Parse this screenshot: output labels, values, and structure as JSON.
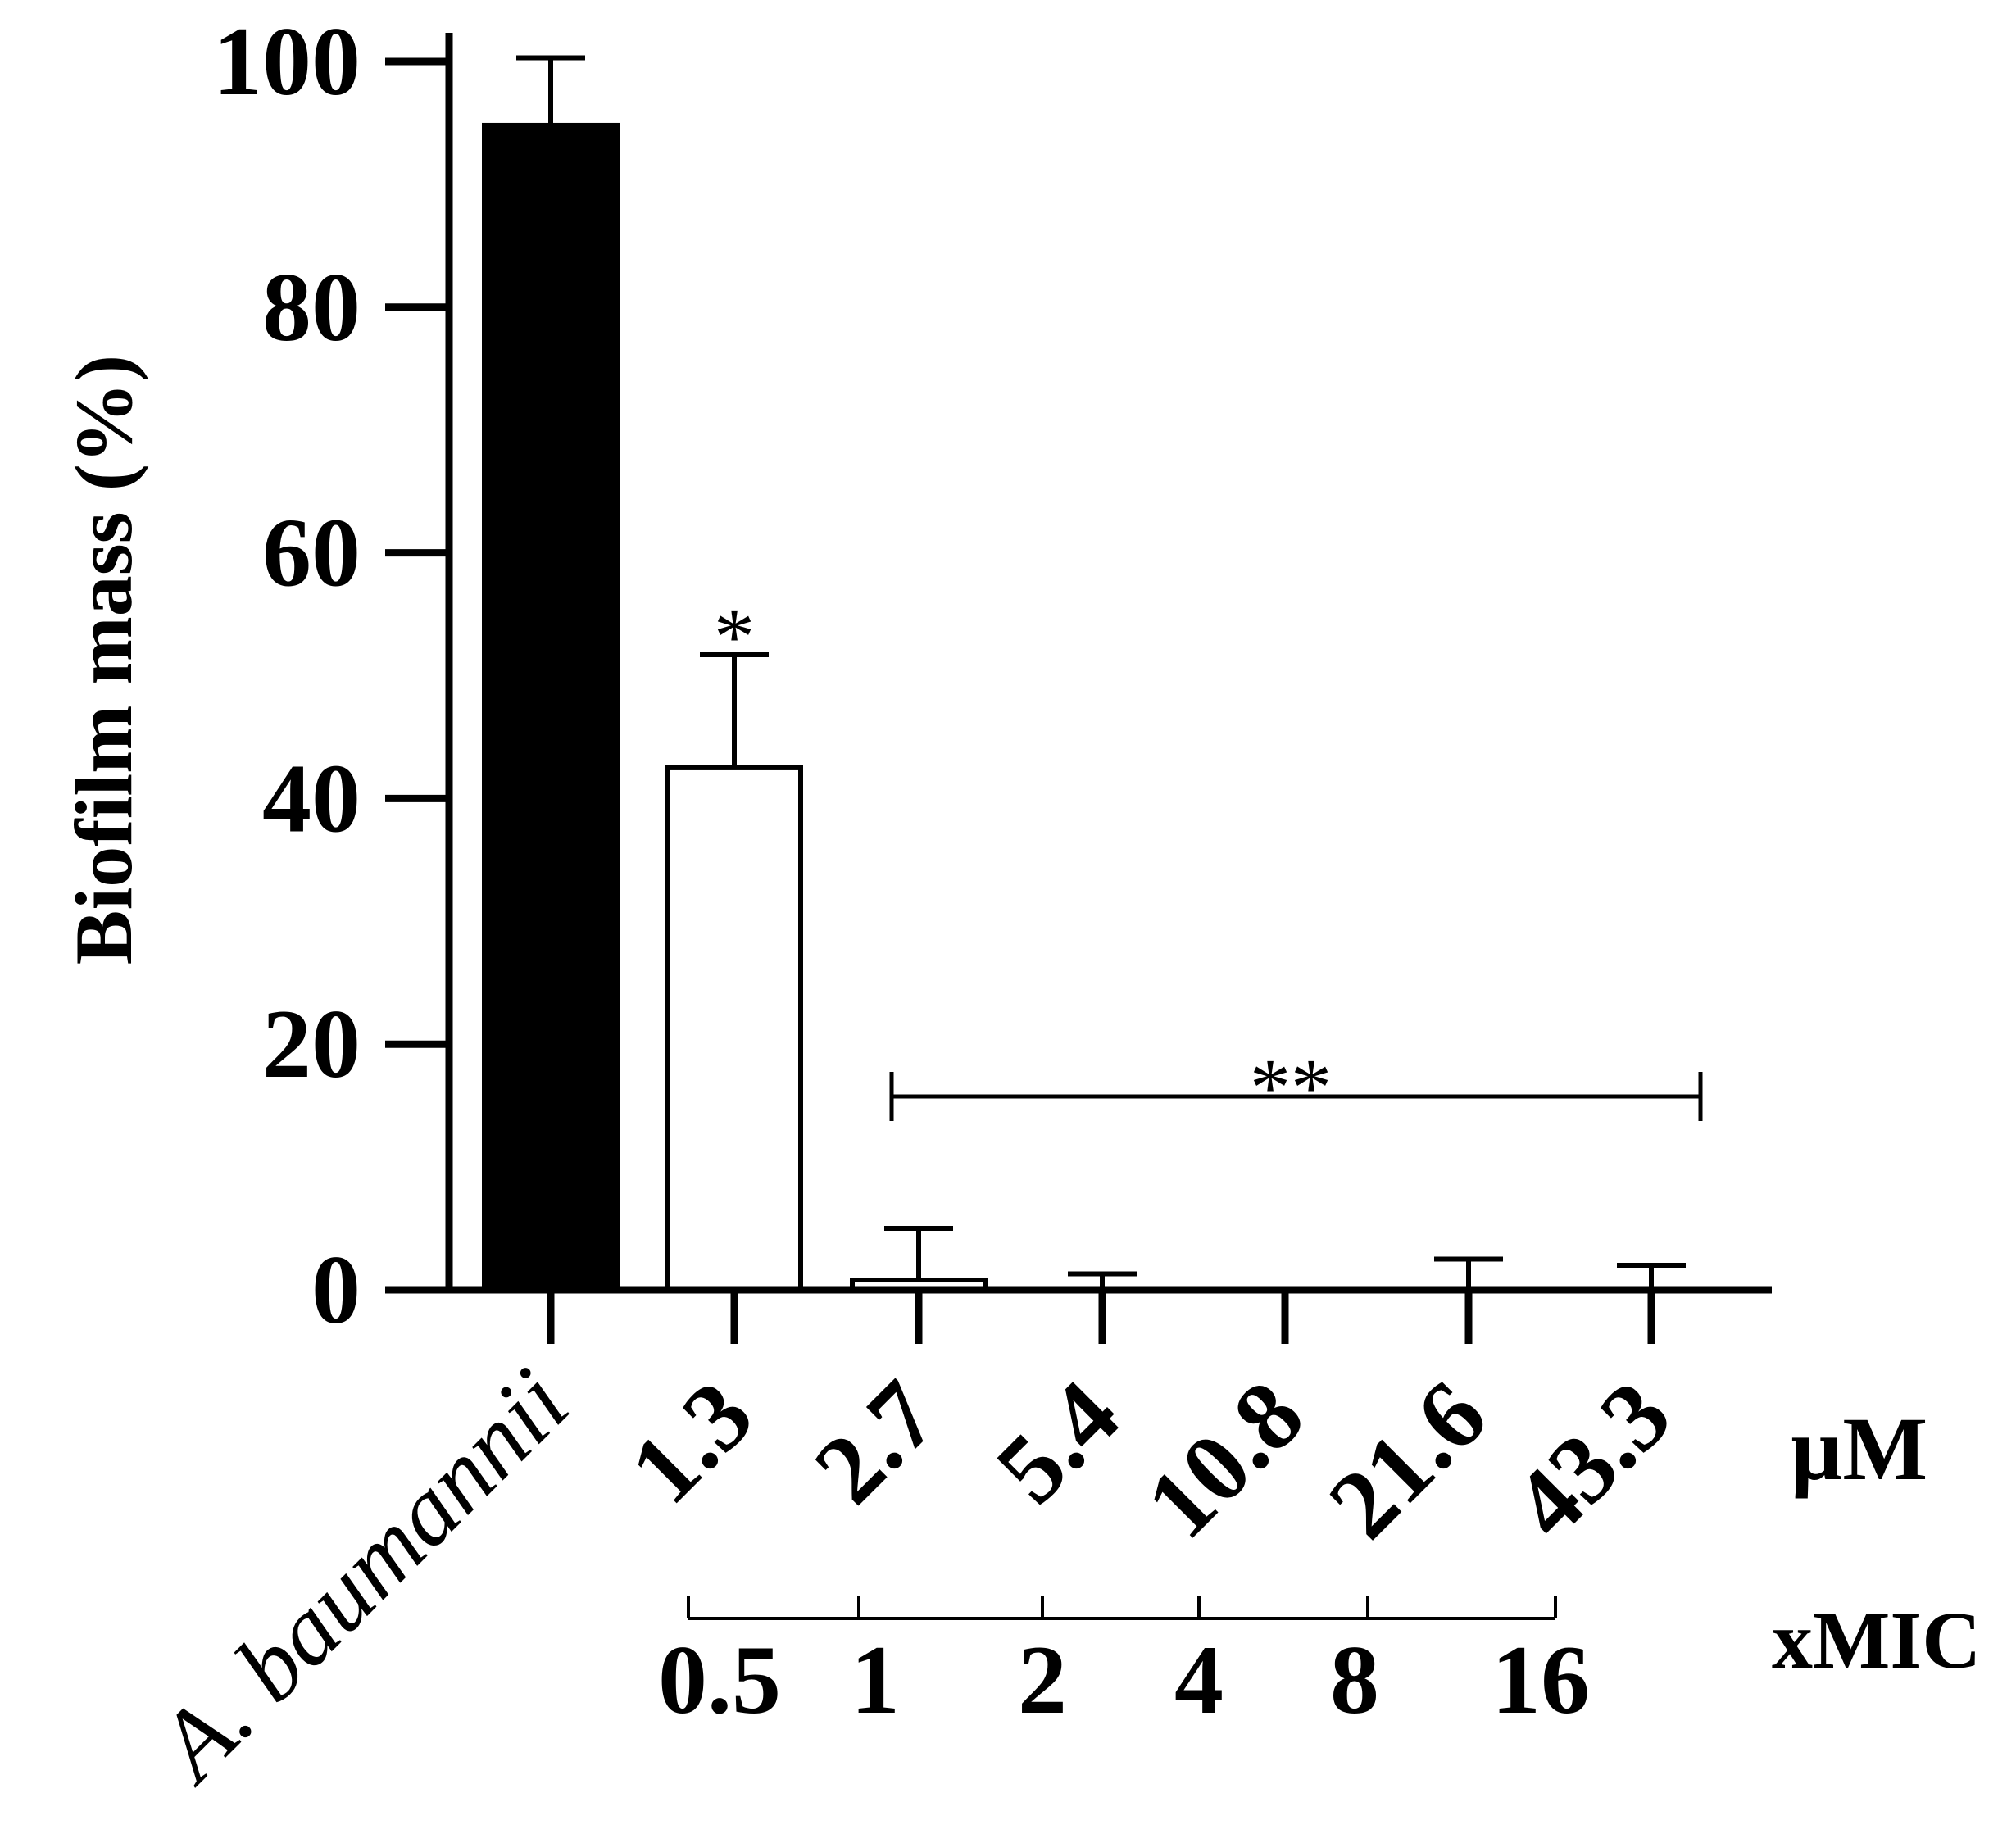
{
  "chart_data": {
    "type": "bar",
    "ylabel": "Biofilm mass (%)",
    "ylim": [
      0,
      100
    ],
    "yticks": [
      0,
      20,
      40,
      60,
      80,
      100
    ],
    "categories": [
      "A. baumannii",
      "1.3",
      "2.7",
      "5.4",
      "10.8",
      "21.6",
      "43.3"
    ],
    "values": [
      95,
      42.7,
      1,
      0.3,
      0,
      0,
      0
    ],
    "errors": [
      5.3,
      9,
      4,
      1,
      0,
      2.5,
      2
    ],
    "bar_fill": [
      "#000000",
      "#ffffff",
      "#ffffff",
      "#ffffff",
      "#ffffff",
      "#ffffff",
      "#ffffff"
    ],
    "concentration_unit": "µM",
    "mic_label": "xMIC",
    "mic_values": [
      "0.5",
      "1",
      "2",
      "4",
      "8",
      "16"
    ],
    "significance": [
      {
        "text": "*",
        "category": "1.3"
      },
      {
        "text": "**",
        "from": "2.7",
        "to": "43.3"
      }
    ],
    "grid": false,
    "legend": "none"
  }
}
